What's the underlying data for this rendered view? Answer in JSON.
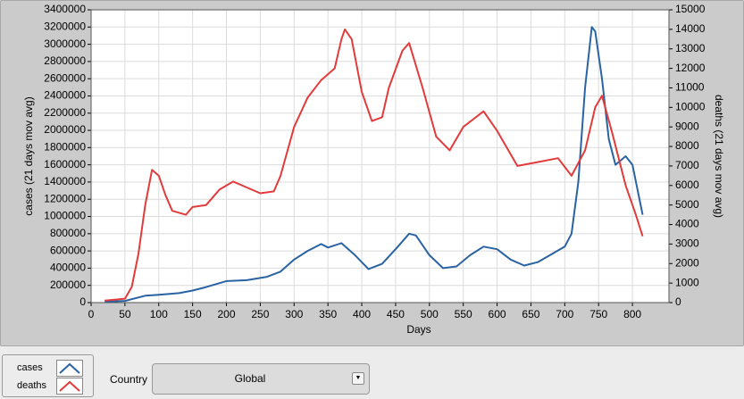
{
  "chart_data": {
    "type": "line",
    "x_label": "Days",
    "y_label": "cases  (21 days mov avg)",
    "y2_label": "deaths  (21 days mov avg)",
    "xlim": [
      0,
      854
    ],
    "xticks": [
      0,
      50,
      100,
      150,
      200,
      250,
      300,
      350,
      400,
      450,
      500,
      550,
      600,
      650,
      700,
      750,
      800
    ],
    "ylim": [
      0,
      3400000
    ],
    "yticks": [
      0,
      200000,
      400000,
      600000,
      800000,
      1000000,
      1200000,
      1400000,
      1600000,
      1800000,
      2000000,
      2200000,
      2400000,
      2600000,
      2800000,
      3000000,
      3200000,
      3400000
    ],
    "y2lim": [
      0,
      15000
    ],
    "y2ticks": [
      0,
      1000,
      2000,
      3000,
      4000,
      5000,
      6000,
      7000,
      8000,
      9000,
      10000,
      11000,
      12000,
      13000,
      14000,
      15000
    ],
    "grid": true,
    "series": [
      {
        "name": "cases",
        "color": "#2a63a3",
        "x": [
          20,
          50,
          80,
          100,
          130,
          150,
          170,
          200,
          230,
          260,
          280,
          300,
          320,
          340,
          350,
          370,
          390,
          410,
          430,
          450,
          470,
          480,
          500,
          520,
          540,
          560,
          580,
          600,
          620,
          640,
          660,
          680,
          700,
          710,
          720,
          730,
          740,
          745,
          755,
          765,
          775,
          790,
          800,
          815
        ],
        "values": [
          10000,
          20000,
          80000,
          90000,
          110000,
          140000,
          180000,
          250000,
          260000,
          300000,
          360000,
          500000,
          600000,
          680000,
          640000,
          690000,
          550000,
          390000,
          450000,
          620000,
          800000,
          780000,
          550000,
          400000,
          420000,
          550000,
          650000,
          620000,
          500000,
          430000,
          470000,
          560000,
          650000,
          800000,
          1400000,
          2500000,
          3200000,
          3150000,
          2600000,
          1900000,
          1600000,
          1700000,
          1600000,
          1020000
        ]
      },
      {
        "name": "deaths",
        "color": "#e33b3b",
        "axis": "y2",
        "x": [
          20,
          50,
          60,
          70,
          80,
          90,
          100,
          110,
          120,
          140,
          150,
          170,
          190,
          210,
          230,
          250,
          270,
          280,
          300,
          320,
          340,
          360,
          370,
          375,
          385,
          400,
          415,
          430,
          440,
          460,
          470,
          490,
          510,
          530,
          550,
          580,
          600,
          630,
          660,
          690,
          710,
          730,
          745,
          755,
          770,
          790,
          805,
          815
        ],
        "values": [
          100,
          200,
          800,
          2500,
          5000,
          6800,
          6500,
          5500,
          4700,
          4500,
          4900,
          5000,
          5800,
          6200,
          5900,
          5600,
          5700,
          6500,
          9000,
          10500,
          11400,
          12000,
          13500,
          14000,
          13500,
          10800,
          9300,
          9500,
          11000,
          12900,
          13300,
          11000,
          8500,
          7800,
          9000,
          9800,
          8800,
          7000,
          7200,
          7400,
          6500,
          7800,
          10000,
          10600,
          8700,
          6000,
          4500,
          3400
        ]
      }
    ]
  },
  "ui": {
    "country_label": "Country",
    "country_value": "Global"
  }
}
